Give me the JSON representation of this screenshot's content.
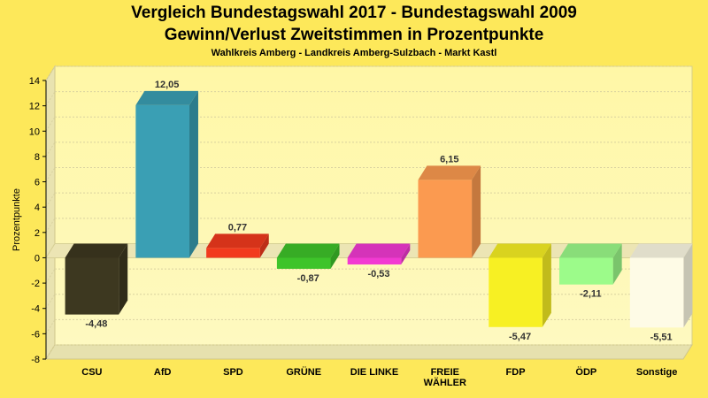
{
  "header": {
    "title": "Vergleich Bundestagswahl 2017 - Bundestagswahl 2009",
    "subtitle": "Gewinn/Verlust Zweitstimmen in Prozentpunkte",
    "subsubtitle": "Wahlkreis Amberg - Landkreis Amberg-Sulzbach - Markt Kastl"
  },
  "chart_data": {
    "type": "bar",
    "title": "Vergleich Bundestagswahl 2017 - Bundestagswahl 2009",
    "subtitle": "Gewinn/Verlust Zweitstimmen in Prozentpunkte",
    "ylabel": "Prozentpunkte",
    "xlabel": "",
    "ylim": [
      -8,
      14
    ],
    "yticks": [
      -8,
      -6,
      -4,
      -2,
      0,
      2,
      4,
      6,
      8,
      10,
      12,
      14
    ],
    "grid": true,
    "categories": [
      "CSU",
      "AfD",
      "SPD",
      "GRÜNE",
      "DIE LINKE",
      "FREIE WÄHLER",
      "FDP",
      "ÖDP",
      "Sonstige"
    ],
    "category_lines": [
      [
        "CSU"
      ],
      [
        "AfD"
      ],
      [
        "SPD"
      ],
      [
        "GRÜNE"
      ],
      [
        "DIE LINKE"
      ],
      [
        "FREIE",
        "WÄHLER"
      ],
      [
        "FDP"
      ],
      [
        "ÖDP"
      ],
      [
        "Sonstige"
      ]
    ],
    "values": [
      -4.48,
      12.05,
      0.77,
      -0.87,
      -0.53,
      6.15,
      -5.47,
      -2.11,
      -5.51
    ],
    "value_labels": [
      "-4,48",
      "12,05",
      "0,77",
      "-0,87",
      "-0,53",
      "6,15",
      "-5,47",
      "-2,11",
      "-5,51"
    ],
    "colors": [
      "#3d3820",
      "#3a9fb4",
      "#f23a1e",
      "#3ec42a",
      "#f23ad2",
      "#fb9a50",
      "#f7f023",
      "#9cfb8a",
      "#fefbe6"
    ]
  }
}
